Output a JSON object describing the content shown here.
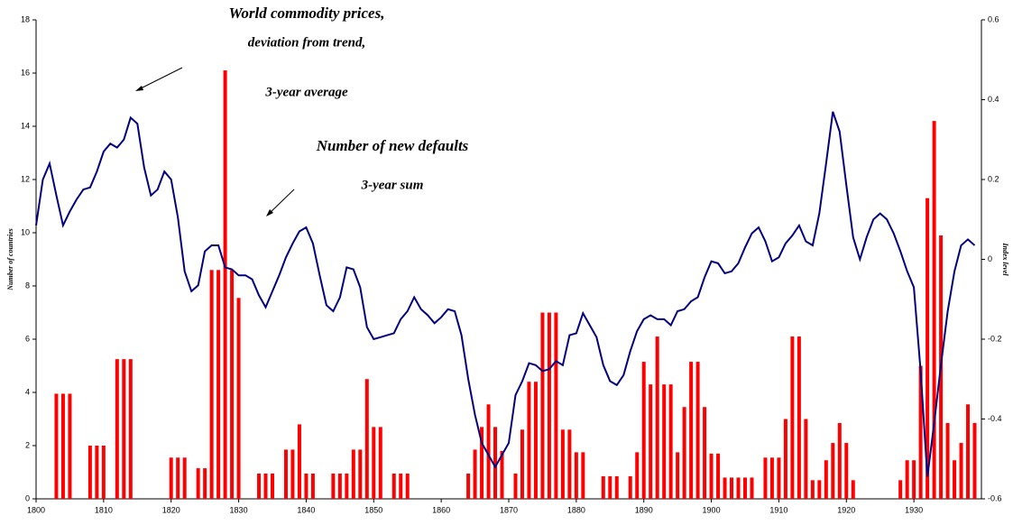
{
  "chart_data": {
    "type": "combo",
    "annotations": [
      "World commodity prices,",
      "deviation from trend,",
      "3-year average",
      "Number of new defaults",
      "3-year sum"
    ],
    "ylabel": "Number of countries",
    "y2label": "Index level",
    "x": [
      1800,
      1801,
      1802,
      1803,
      1804,
      1805,
      1806,
      1807,
      1808,
      1809,
      1810,
      1811,
      1812,
      1813,
      1814,
      1815,
      1816,
      1817,
      1818,
      1819,
      1820,
      1821,
      1822,
      1823,
      1824,
      1825,
      1826,
      1827,
      1828,
      1829,
      1830,
      1831,
      1832,
      1833,
      1834,
      1835,
      1836,
      1837,
      1838,
      1839,
      1840,
      1841,
      1842,
      1843,
      1844,
      1845,
      1846,
      1847,
      1848,
      1849,
      1850,
      1851,
      1852,
      1853,
      1854,
      1855,
      1856,
      1857,
      1858,
      1859,
      1860,
      1861,
      1862,
      1863,
      1864,
      1865,
      1866,
      1867,
      1868,
      1869,
      1870,
      1871,
      1872,
      1873,
      1874,
      1875,
      1876,
      1877,
      1878,
      1879,
      1880,
      1881,
      1882,
      1883,
      1884,
      1885,
      1886,
      1887,
      1888,
      1889,
      1890,
      1891,
      1892,
      1893,
      1894,
      1895,
      1896,
      1897,
      1898,
      1899,
      1900,
      1901,
      1902,
      1903,
      1904,
      1905,
      1906,
      1907,
      1908,
      1909,
      1910,
      1911,
      1912,
      1913,
      1914,
      1915,
      1916,
      1917,
      1918,
      1919,
      1920,
      1921,
      1922,
      1923,
      1924,
      1925,
      1926,
      1927,
      1928,
      1929,
      1930,
      1931,
      1932,
      1933,
      1934,
      1935,
      1936,
      1937,
      1938,
      1939
    ],
    "xlim": [
      1800,
      1940
    ],
    "xticks": [
      1800,
      1810,
      1820,
      1830,
      1840,
      1850,
      1860,
      1870,
      1880,
      1890,
      1900,
      1910,
      1920,
      1930
    ],
    "ylim": [
      0,
      18
    ],
    "yticks": [
      0,
      2,
      4,
      6,
      8,
      10,
      12,
      14,
      16,
      18
    ],
    "y2lim": [
      -0.6,
      0.6
    ],
    "y2ticks": [
      -0.6,
      -0.4,
      -0.2,
      0,
      0.2,
      0.4,
      0.6
    ],
    "series": [
      {
        "type": "bar",
        "color": "#ff0000",
        "values": [
          0,
          0,
          0,
          3.95,
          3.95,
          3.95,
          0,
          0,
          2,
          2,
          2,
          0,
          5.25,
          5.25,
          5.25,
          0,
          0,
          0,
          0,
          0,
          1.55,
          1.55,
          1.55,
          0,
          1.15,
          1.15,
          8.6,
          8.6,
          16.1,
          8.6,
          7.55,
          0,
          0,
          0.95,
          0.95,
          0.95,
          0,
          1.85,
          1.85,
          2.8,
          0.95,
          0.95,
          0,
          0,
          0.95,
          0.95,
          0.95,
          1.85,
          1.85,
          4.5,
          2.7,
          2.7,
          0,
          0.95,
          0.95,
          0.95,
          0,
          0,
          0,
          0,
          0,
          0,
          0,
          0,
          0.95,
          1.85,
          2.7,
          3.55,
          2.7,
          1.8,
          0,
          0.95,
          2.6,
          4.4,
          4.4,
          7,
          7,
          7,
          2.6,
          2.6,
          1.75,
          1.75,
          0,
          0,
          0.85,
          0.85,
          0.85,
          0,
          0.85,
          1.75,
          5.15,
          4.3,
          6.1,
          4.3,
          4.3,
          1.75,
          3.45,
          5.15,
          5.15,
          3.45,
          1.7,
          1.7,
          0.8,
          0.8,
          0.8,
          0.8,
          0.8,
          0,
          1.55,
          1.55,
          1.55,
          3.0,
          6.1,
          6.1,
          3.0,
          0.7,
          0.7,
          1.45,
          2.1,
          2.85,
          2.1,
          0.7,
          0,
          0,
          0,
          0,
          0,
          0,
          0.7,
          1.45,
          1.45,
          5,
          11.3,
          14.2,
          9.9,
          2.85,
          1.45,
          2.1,
          3.55,
          2.85
        ]
      },
      {
        "type": "line",
        "axis": "y2",
        "color": "#000080",
        "values": [
          0.085,
          0.2,
          0.24,
          0.16,
          0.085,
          0.12,
          0.15,
          0.175,
          0.18,
          0.22,
          0.27,
          0.29,
          0.28,
          0.3,
          0.355,
          0.34,
          0.23,
          0.16,
          0.175,
          0.22,
          0.2,
          0.105,
          -0.03,
          -0.08,
          -0.065,
          0.02,
          0.035,
          0.035,
          -0.02,
          -0.025,
          -0.04,
          -0.04,
          -0.05,
          -0.09,
          -0.12,
          -0.08,
          -0.04,
          0.005,
          0.04,
          0.07,
          0.08,
          0.04,
          -0.04,
          -0.115,
          -0.13,
          -0.095,
          -0.02,
          -0.025,
          -0.07,
          -0.17,
          -0.2,
          -0.195,
          -0.19,
          -0.185,
          -0.15,
          -0.13,
          -0.095,
          -0.125,
          -0.14,
          -0.16,
          -0.145,
          -0.125,
          -0.13,
          -0.19,
          -0.3,
          -0.39,
          -0.46,
          -0.49,
          -0.52,
          -0.49,
          -0.46,
          -0.34,
          -0.305,
          -0.26,
          -0.265,
          -0.28,
          -0.275,
          -0.255,
          -0.265,
          -0.19,
          -0.185,
          -0.135,
          -0.165,
          -0.195,
          -0.265,
          -0.305,
          -0.315,
          -0.29,
          -0.23,
          -0.18,
          -0.15,
          -0.14,
          -0.15,
          -0.15,
          -0.165,
          -0.13,
          -0.125,
          -0.105,
          -0.095,
          -0.045,
          -0.005,
          -0.01,
          -0.035,
          -0.03,
          -0.01,
          0.03,
          0.065,
          0.08,
          0.045,
          -0.005,
          0.005,
          0.04,
          0.06,
          0.085,
          0.045,
          0.035,
          0.115,
          0.24,
          0.37,
          0.32,
          0.185,
          0.055,
          0,
          0.055,
          0.1,
          0.115,
          0.1,
          0.065,
          0.02,
          -0.03,
          -0.07,
          -0.28,
          -0.545,
          -0.41,
          -0.265,
          -0.13,
          -0.03,
          0.035,
          0.05,
          0.035
        ]
      }
    ]
  }
}
